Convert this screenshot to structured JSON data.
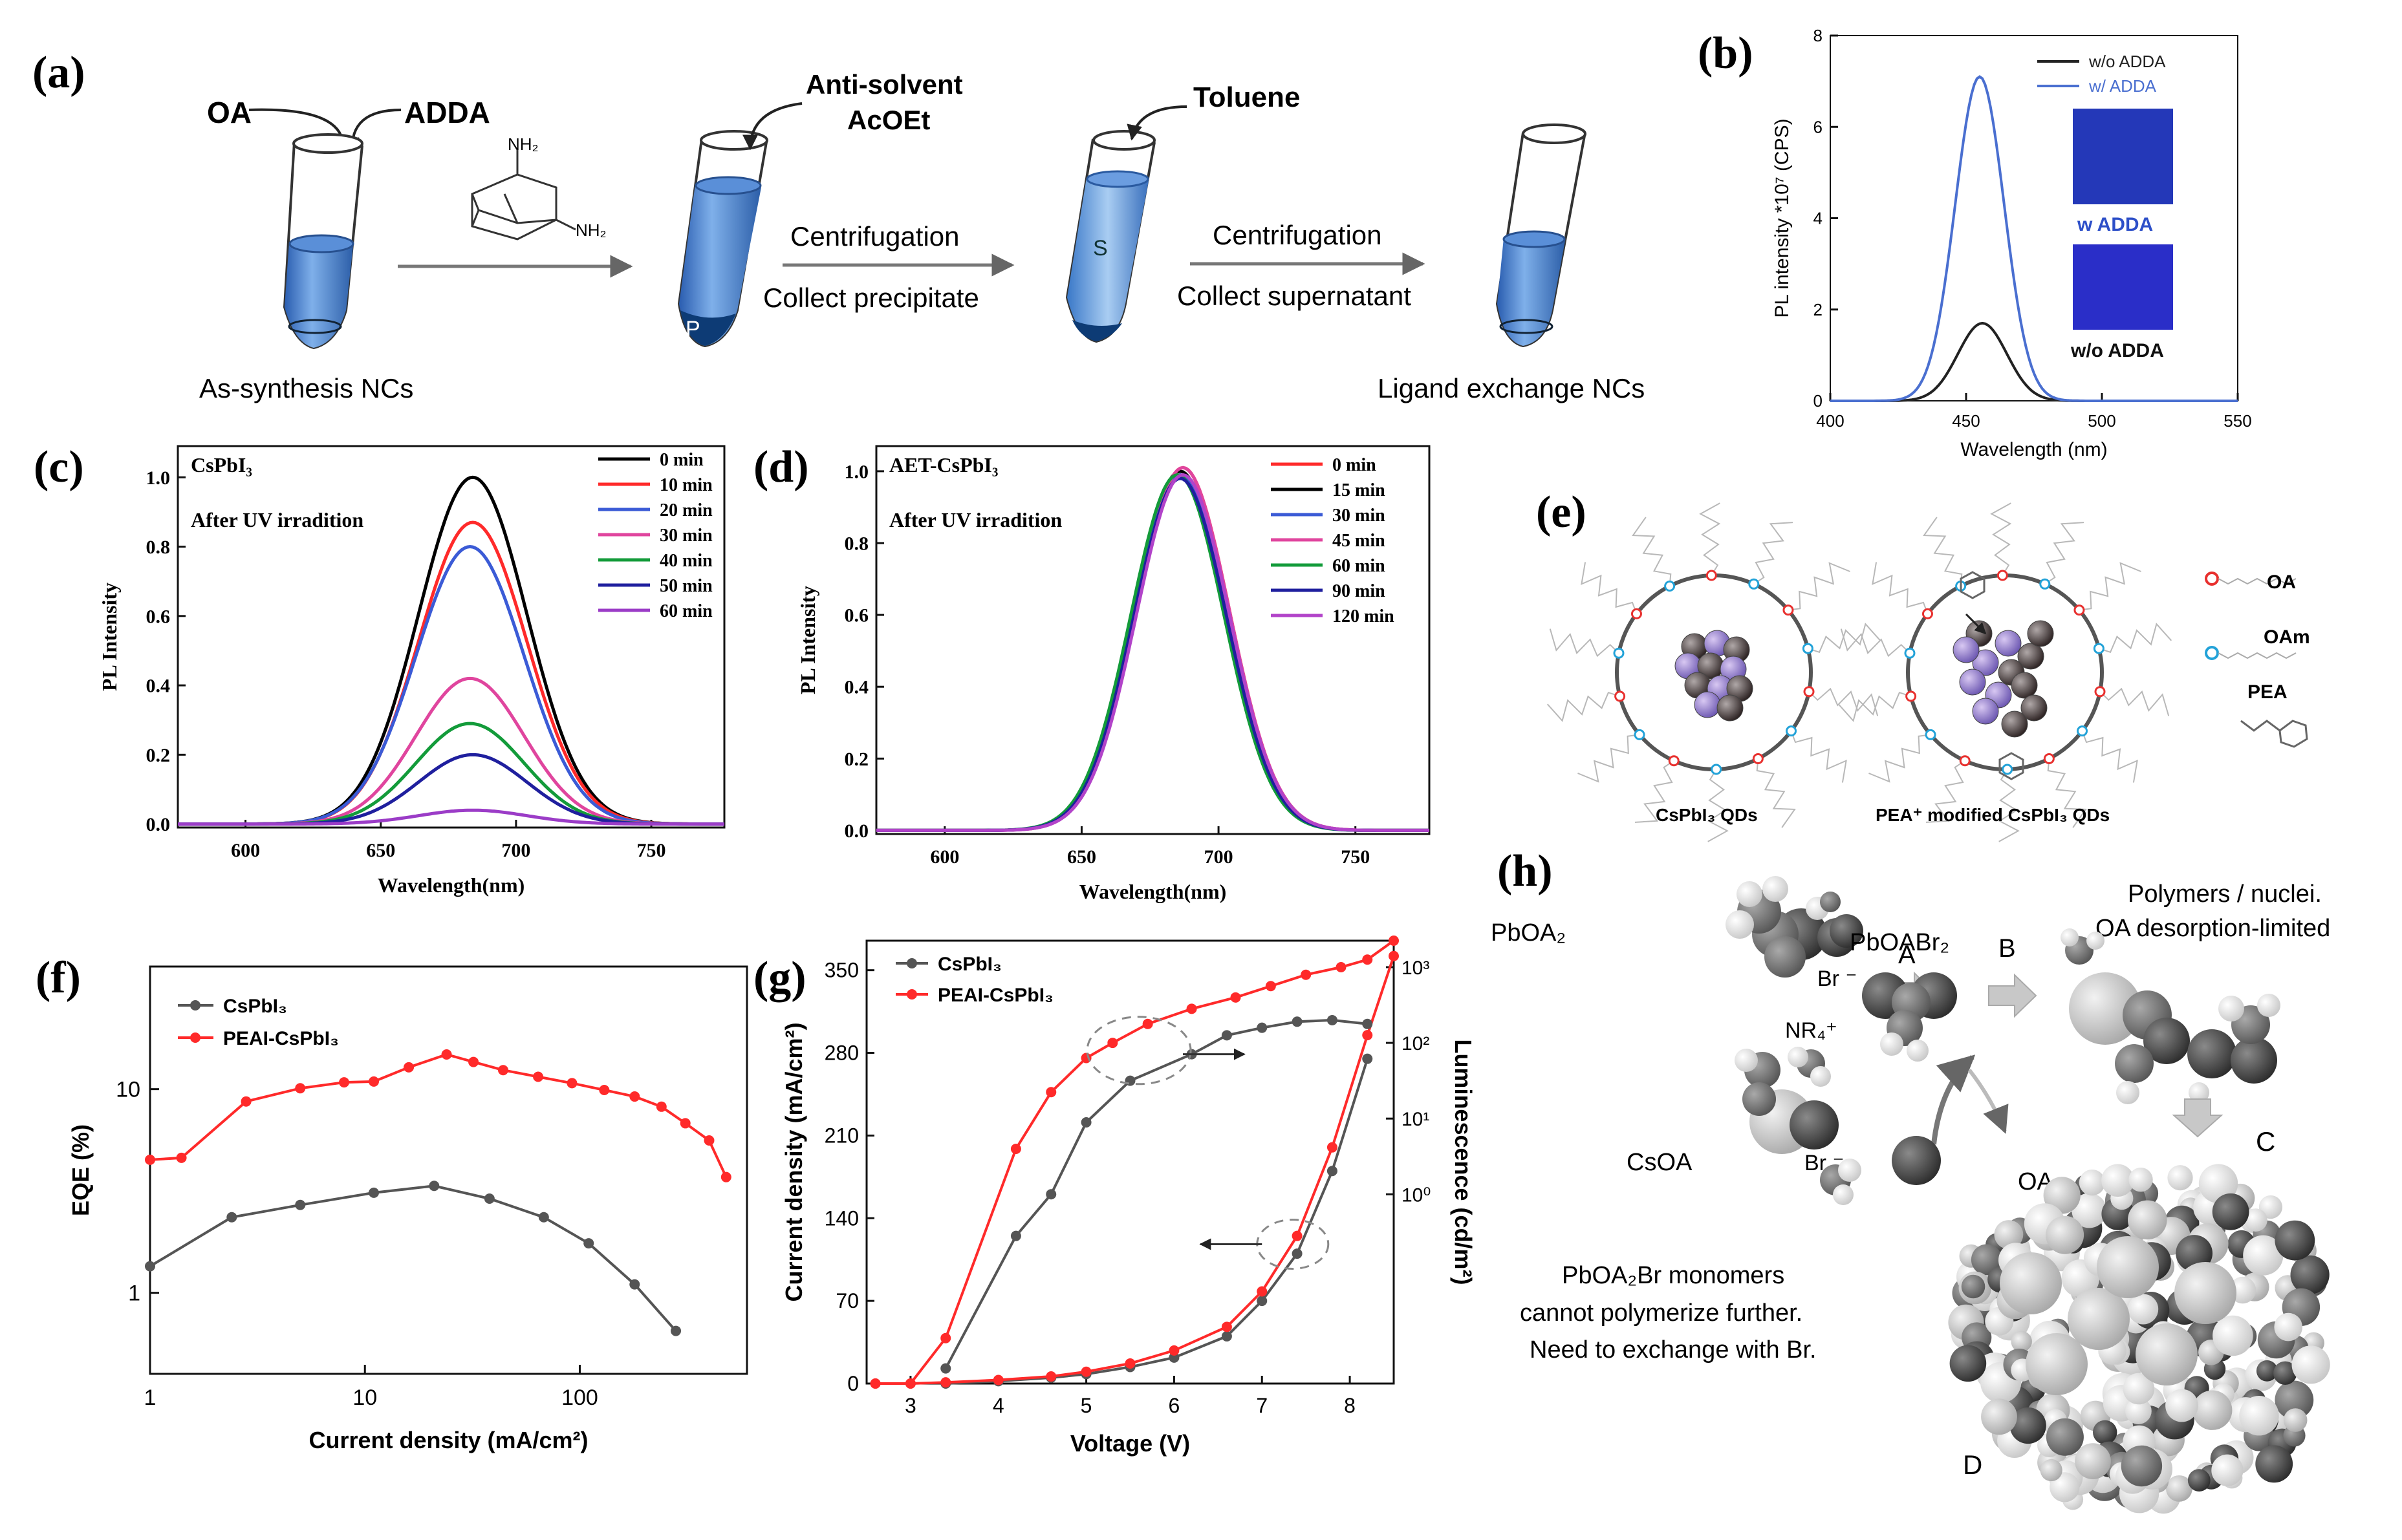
{
  "panels": {
    "a": {
      "label": "(a)",
      "oa": "OA",
      "adda": "ADDA",
      "nh2_top": "NH₂",
      "nh2_right": "NH₂",
      "antisolvent_line1": "Anti-solvent",
      "antisolvent_line2": "AcOEt",
      "toluene": "Toluene",
      "step1_top": "Centrifugation",
      "step1_bottom": "Collect precipitate",
      "step2_top": "Centrifugation",
      "step2_bottom": "Collect supernatant",
      "tube_p": "P",
      "tube_s": "S",
      "left_caption": "As-synthesis NCs",
      "right_caption": "Ligand exchange NCs"
    },
    "b": {
      "label": "(b)",
      "inset_top": "w ADDA",
      "inset_bottom": "w/o ADDA"
    },
    "c": {
      "label": "(c)"
    },
    "d": {
      "label": "(d)"
    },
    "e": {
      "label": "(e)",
      "legend_oa": "OA",
      "legend_oam": "OAm",
      "legend_pea": "PEA",
      "caption_left": "CsPbI₃ QDs",
      "caption_right": "PEA⁺ modified CsPbI₃ QDs"
    },
    "f": {
      "label": "(f)"
    },
    "g": {
      "label": "(g)"
    },
    "h": {
      "label": "(h)",
      "pboa2": "PbOA₂",
      "br1": "Br ⁻",
      "nr4": "NR₄⁺",
      "csoa": "CsOA",
      "br2": "Br ⁻",
      "arrow_a": "A",
      "arrow_b": "B",
      "pboabr2": "PbOABr₂",
      "oa": "OA",
      "polymers_line1": "Polymers / nuclei.",
      "polymers_line2": "OA desorption-limited",
      "label_c": "C",
      "label_d": "D",
      "note_line1": "PbOA₂Br monomers",
      "note_line2": "cannot polymerize further.",
      "note_line3": "Need to exchange with Br."
    }
  },
  "chart_data": [
    {
      "id": "b",
      "type": "line",
      "xlabel": "Wavelength (nm)",
      "ylabel": "PL intensity *10⁷ (CPS)",
      "xlim": [
        400,
        550
      ],
      "ylim": [
        0,
        8
      ],
      "xticks": [
        400,
        450,
        500,
        550
      ],
      "yticks": [
        0,
        2,
        4,
        6,
        8
      ],
      "series": [
        {
          "name": "w/o ADDA",
          "color": "#222222",
          "peak_x": 456,
          "peak_y": 1.7,
          "sigma": 9
        },
        {
          "name": "w/ ADDA",
          "color": "#4a6fd0",
          "peak_x": 455,
          "peak_y": 7.1,
          "sigma": 9
        }
      ]
    },
    {
      "id": "c",
      "type": "line",
      "title_text": "CsPbI₃",
      "annotation": "After UV irradition",
      "xlabel": "Wavelength(nm)",
      "ylabel": "PL Intensity",
      "xlim": [
        575,
        777
      ],
      "ylim": [
        -0.01,
        1.09
      ],
      "xticks": [
        600,
        650,
        700,
        750
      ],
      "yticks": [
        0.0,
        0.2,
        0.4,
        0.6,
        0.8,
        1.0
      ],
      "series": [
        {
          "name": "0 min",
          "color": "#000000",
          "peak_x": 684,
          "peak_y": 1.0,
          "sigma": 20
        },
        {
          "name": "10 min",
          "color": "#ff2a2a",
          "peak_x": 684,
          "peak_y": 0.87,
          "sigma": 20
        },
        {
          "name": "20 min",
          "color": "#3b5bd6",
          "peak_x": 683,
          "peak_y": 0.8,
          "sigma": 20
        },
        {
          "name": "30 min",
          "color": "#e0459e",
          "peak_x": 683,
          "peak_y": 0.42,
          "sigma": 20
        },
        {
          "name": "40 min",
          "color": "#139b3a",
          "peak_x": 683,
          "peak_y": 0.29,
          "sigma": 20
        },
        {
          "name": "50 min",
          "color": "#1f1f9e",
          "peak_x": 684,
          "peak_y": 0.2,
          "sigma": 20
        },
        {
          "name": "60 min",
          "color": "#9b3cc7",
          "peak_x": 684,
          "peak_y": 0.04,
          "sigma": 20
        }
      ]
    },
    {
      "id": "d",
      "type": "line",
      "title_text": "AET-CsPbI₃",
      "annotation": "After UV irradition",
      "xlabel": "Wavelength(nm)",
      "ylabel": "PL Intensity",
      "xlim": [
        575,
        777
      ],
      "ylim": [
        -0.01,
        1.07
      ],
      "xticks": [
        600,
        650,
        700,
        750
      ],
      "yticks": [
        0.0,
        0.2,
        0.4,
        0.6,
        0.8,
        1.0
      ],
      "series": [
        {
          "name": "0 min",
          "color": "#ff2a2a",
          "peak_x": 687,
          "peak_y": 1.01,
          "sigma": 17
        },
        {
          "name": "15 min",
          "color": "#000000",
          "peak_x": 686,
          "peak_y": 1.0,
          "sigma": 17
        },
        {
          "name": "30 min",
          "color": "#3b5bd6",
          "peak_x": 686,
          "peak_y": 0.99,
          "sigma": 17
        },
        {
          "name": "45 min",
          "color": "#e0459e",
          "peak_x": 687,
          "peak_y": 1.01,
          "sigma": 17
        },
        {
          "name": "60 min",
          "color": "#139b3a",
          "peak_x": 685,
          "peak_y": 0.99,
          "sigma": 17
        },
        {
          "name": "90 min",
          "color": "#1f1f9e",
          "peak_x": 686,
          "peak_y": 0.98,
          "sigma": 17
        },
        {
          "name": "120 min",
          "color": "#b243c9",
          "peak_x": 687,
          "peak_y": 0.99,
          "sigma": 17
        }
      ]
    },
    {
      "id": "f",
      "type": "line",
      "xscale": "log",
      "yscale": "log",
      "xlabel": "Current density (mA/cm²)",
      "ylabel": "EQE (%)",
      "xlim": [
        1,
        600
      ],
      "ylim": [
        0.4,
        40
      ],
      "xticks": [
        1,
        10,
        100
      ],
      "xtick_labels": [
        "1",
        "10",
        "100"
      ],
      "yticks": [
        1,
        10
      ],
      "ytick_labels": [
        "1",
        "10"
      ],
      "series": [
        {
          "name": "CsPbI₃",
          "color": "#555555",
          "x": [
            1,
            2.4,
            5,
            11,
            21,
            38,
            68,
            110,
            180,
            280
          ],
          "y": [
            1.35,
            2.35,
            2.7,
            3.1,
            3.35,
            2.9,
            2.35,
            1.75,
            1.1,
            0.65
          ]
        },
        {
          "name": "PEAI-CsPbI₃",
          "color": "#ff2a2a",
          "x": [
            1,
            1.4,
            2.8,
            5,
            8,
            11,
            16,
            24,
            32,
            44,
            64,
            92,
            130,
            180,
            240,
            310,
            400,
            480
          ],
          "y": [
            4.5,
            4.6,
            8.7,
            10.1,
            10.8,
            10.9,
            12.8,
            14.8,
            13.6,
            12.4,
            11.5,
            10.7,
            9.9,
            9.2,
            8.2,
            6.8,
            5.6,
            3.7
          ]
        }
      ]
    },
    {
      "id": "g",
      "type": "line",
      "xlabel": "Voltage (V)",
      "ylabel": "Current density (mA/cm²)",
      "y2label": "Luminescence (cd/m²)",
      "xlim": [
        2.5,
        8.5
      ],
      "ylim": [
        0,
        375
      ],
      "xticks": [
        3,
        4,
        5,
        6,
        7,
        8
      ],
      "yticks": [
        0,
        70,
        140,
        210,
        280,
        350
      ],
      "y2lim": [
        -2.5,
        3.35
      ],
      "y2ticks": [
        0,
        1,
        2,
        3
      ],
      "y2tick_labels": [
        "10⁰",
        "10¹",
        "10²",
        "10³"
      ],
      "series": [
        {
          "name": "CsPbI₃",
          "color": "#555555",
          "axis": "left",
          "x": [
            3.4,
            4.0,
            4.6,
            5.0,
            5.5,
            6.0,
            6.6,
            7.0,
            7.4,
            7.8,
            8.2
          ],
          "y": [
            0,
            2,
            5,
            8,
            14,
            22,
            40,
            70,
            110,
            180,
            275
          ]
        },
        {
          "name": "PEAI-CsPbI₃",
          "color": "#ff2a2a",
          "axis": "left",
          "x": [
            2.6,
            3.0,
            3.4,
            4.0,
            4.6,
            5.0,
            5.5,
            6.0,
            6.6,
            7.0,
            7.4,
            7.8,
            8.2,
            8.5
          ],
          "y": [
            0,
            0,
            1,
            3,
            6,
            10,
            17,
            28,
            48,
            78,
            125,
            200,
            295,
            362
          ]
        },
        {
          "name": "CsPbI₃ luminescence",
          "color": "#555555",
          "axis": "right",
          "x": [
            3.4,
            4.2,
            4.6,
            5.0,
            5.5,
            6.2,
            6.6,
            7.0,
            7.4,
            7.8,
            8.2
          ],
          "y": [
            -2.3,
            -0.55,
            0.0,
            0.95,
            1.5,
            1.85,
            2.1,
            2.2,
            2.28,
            2.3,
            2.25
          ]
        },
        {
          "name": "PEAI-CsPbI₃ luminescence",
          "color": "#ff2a2a",
          "axis": "right",
          "x": [
            2.6,
            3.0,
            3.4,
            4.2,
            4.6,
            5.0,
            5.3,
            5.7,
            6.2,
            6.7,
            7.1,
            7.5,
            7.9,
            8.2,
            8.5
          ],
          "y": [
            -2.5,
            -2.5,
            -1.9,
            0.6,
            1.35,
            1.8,
            2.0,
            2.25,
            2.45,
            2.6,
            2.75,
            2.9,
            3.0,
            3.1,
            3.35
          ]
        }
      ]
    }
  ]
}
